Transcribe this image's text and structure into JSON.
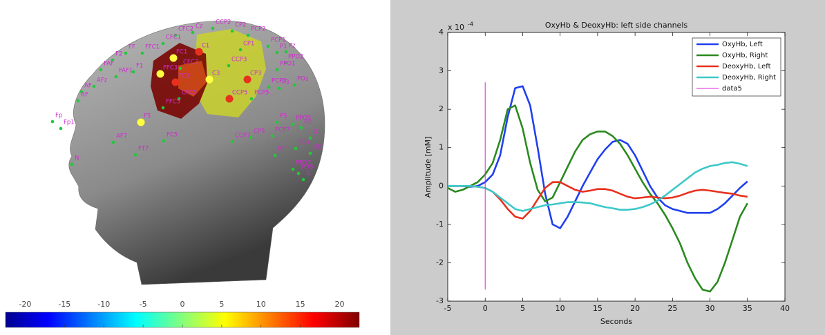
{
  "chart_data": [
    {
      "type": "colorbar",
      "xlim": [
        -22.5,
        22.5
      ],
      "xticks": [
        -20,
        -15,
        -10,
        -5,
        0,
        5,
        10,
        15,
        20
      ],
      "electrodes": [
        "Cz",
        "CCP2",
        "CP2",
        "PCP2",
        "CFC2",
        "CFC1",
        "FFC1",
        "FF",
        "F2",
        "FAF",
        "FAF1",
        "F1",
        "AF",
        "AFz",
        "AF",
        "FC1",
        "C1",
        "CP1",
        "CFC3",
        "FFC3",
        "FC3",
        "C3",
        "CP3",
        "CCP3",
        "PCP1",
        "P1",
        "Pz",
        "PPO2",
        "PPO1",
        "PCP3",
        "P3",
        "POz",
        "PCP5",
        "CCP5",
        "CFC5",
        "FFC5",
        "F5",
        "Fp",
        "Fp1",
        "AF7",
        "FC5",
        "CP5",
        "P5",
        "PPO5",
        "Oz",
        "O1",
        "PO7",
        "OI1",
        "PCP7",
        "P7",
        "CCP7",
        "FT7",
        "PPO7",
        "PO9",
        "I1",
        "N"
      ]
    },
    {
      "type": "line",
      "title": "OxyHb & DeoxyHb: left side channels",
      "x_label": "Seconds",
      "y_label": "Amplitude  [mM]",
      "y_multiplier": {
        "base": "x 10",
        "exponent": "-4"
      },
      "xlim": [
        -5,
        40
      ],
      "xticks": [
        -5,
        0,
        5,
        10,
        15,
        20,
        25,
        30,
        35,
        40
      ],
      "ylim": [
        -3,
        4
      ],
      "yticks": [
        -3,
        -2,
        -1,
        0,
        1,
        2,
        3,
        4
      ],
      "x": [
        -5,
        -4,
        -3,
        -2,
        -1,
        0,
        1,
        2,
        3,
        4,
        5,
        6,
        7,
        8,
        9,
        10,
        11,
        12,
        13,
        14,
        15,
        16,
        17,
        18,
        19,
        20,
        21,
        22,
        23,
        24,
        25,
        26,
        27,
        28,
        29,
        30,
        31,
        32,
        33,
        34,
        35
      ],
      "series": [
        {
          "name": "OxyHb, Left",
          "color": "#1f3ff0",
          "values": [
            0,
            0,
            0,
            -0.02,
            0,
            0.1,
            0.3,
            0.8,
            1.8,
            2.55,
            2.6,
            2.1,
            1.0,
            -0.2,
            -1.0,
            -1.1,
            -0.8,
            -0.4,
            0,
            0.35,
            0.7,
            0.95,
            1.15,
            1.2,
            1.1,
            0.8,
            0.4,
            0,
            -0.3,
            -0.5,
            -0.6,
            -0.65,
            -0.7,
            -0.7,
            -0.7,
            -0.7,
            -0.6,
            -0.45,
            -0.25,
            -0.05,
            0.12
          ]
        },
        {
          "name": "OxyHb, Right",
          "color": "#2a8a1e",
          "values": [
            -0.05,
            -0.15,
            -0.1,
            0,
            0.1,
            0.3,
            0.6,
            1.2,
            2.0,
            2.1,
            1.5,
            0.6,
            -0.1,
            -0.4,
            -0.3,
            0.1,
            0.5,
            0.9,
            1.2,
            1.35,
            1.42,
            1.42,
            1.3,
            1.1,
            0.8,
            0.45,
            0.1,
            -0.2,
            -0.45,
            -0.75,
            -1.1,
            -1.5,
            -2.0,
            -2.4,
            -2.7,
            -2.75,
            -2.5,
            -2.0,
            -1.4,
            -0.8,
            -0.45
          ]
        },
        {
          "name": "DeoxyHb, Left",
          "color": "#e8301e",
          "values": [
            0,
            0,
            0,
            0,
            -0.02,
            -0.05,
            -0.15,
            -0.35,
            -0.6,
            -0.8,
            -0.85,
            -0.65,
            -0.35,
            -0.05,
            0.1,
            0.1,
            0,
            -0.1,
            -0.15,
            -0.12,
            -0.08,
            -0.08,
            -0.12,
            -0.2,
            -0.28,
            -0.32,
            -0.3,
            -0.28,
            -0.3,
            -0.32,
            -0.3,
            -0.25,
            -0.18,
            -0.12,
            -0.1,
            -0.12,
            -0.15,
            -0.18,
            -0.2,
            -0.25,
            -0.28
          ]
        },
        {
          "name": "DeoxyHb, Right",
          "color": "#3cc8c8",
          "values": [
            0,
            0,
            0,
            0,
            -0.02,
            -0.05,
            -0.15,
            -0.3,
            -0.45,
            -0.6,
            -0.65,
            -0.6,
            -0.55,
            -0.5,
            -0.48,
            -0.45,
            -0.42,
            -0.42,
            -0.43,
            -0.45,
            -0.5,
            -0.55,
            -0.58,
            -0.62,
            -0.62,
            -0.6,
            -0.55,
            -0.48,
            -0.38,
            -0.25,
            -0.1,
            0.05,
            0.2,
            0.35,
            0.45,
            0.52,
            0.55,
            0.6,
            0.62,
            0.58,
            0.52
          ]
        },
        {
          "name": "data5",
          "color": "#e020e0",
          "x": [
            0,
            0
          ],
          "values": [
            -2.7,
            2.7
          ]
        }
      ]
    }
  ]
}
